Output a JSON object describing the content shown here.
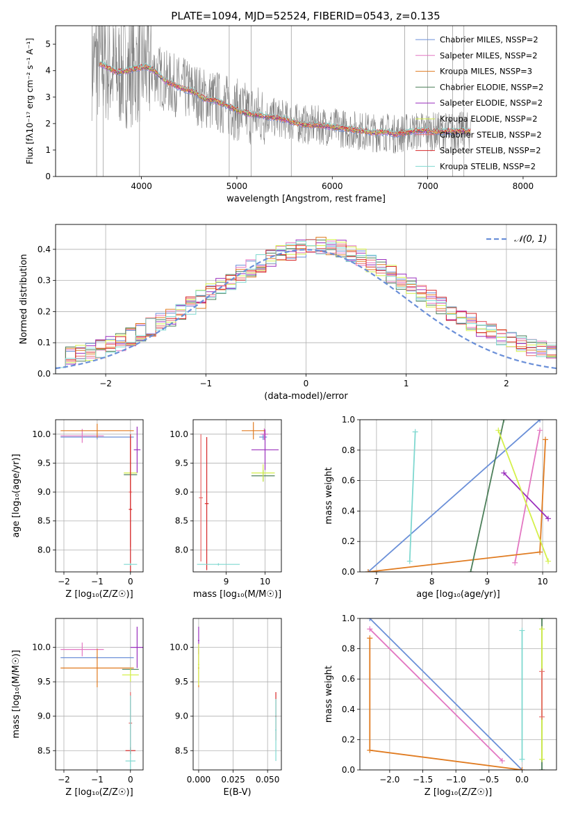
{
  "figure": {
    "title": "PLATE=1094, MJD=52524, FIBERID=0543, z=0.135"
  },
  "colors": {
    "chabrier_miles": "#6a8fd8",
    "salpeter_miles": "#e377c2",
    "kroupa_miles": "#e07b20",
    "chabrier_elodie": "#4d7f5a",
    "salpeter_elodie": "#9a2fbd",
    "kroupa_elodie": "#d4f04a",
    "chabrier_stelib": "#e86a6a",
    "salpeter_stelib": "#d62728",
    "kroupa_stelib": "#7fd8d0",
    "data_spectrum": "#808080",
    "grid": "#b0b0b0",
    "gaussian": "#6a8fd8"
  },
  "chart_data": [
    {
      "id": "spectrum",
      "type": "line",
      "title": "PLATE=1094, MJD=52524, FIBERID=0543, z=0.135",
      "xlabel": "wavelength [Angstrom, rest frame]",
      "ylabel": "Flux [fλ10⁻¹⁷ erg cm⁻² s⁻¹ A⁻¹]",
      "xlim": [
        3100,
        8350
      ],
      "ylim": [
        0,
        5.7
      ],
      "xticks": [
        4000,
        5000,
        6000,
        7000,
        8000
      ],
      "yticks": [
        0,
        1,
        2,
        3,
        4,
        5
      ],
      "legend_position": "top-right",
      "legend": [
        "Chabrier MILES, NSSP=2",
        "Salpeter MILES, NSSP=2",
        "Kroupa MILES, NSSP=3",
        "Chabrier ELODIE, NSSP=2",
        "Salpeter ELODIE, NSSP=2",
        "Kroupa ELODIE, NSSP=2",
        "Chabrier STELIB, NSSP=2",
        "Salpeter STELIB, NSSP=2",
        "Kroupa STELIB, NSSP=2"
      ],
      "model_continuum": {
        "x": [
          3550,
          3650,
          3750,
          3850,
          3950,
          4050,
          4150,
          4250,
          4350,
          4450,
          4550,
          4650,
          4750,
          4850,
          4950,
          5050,
          5150,
          5250,
          5350,
          5450,
          5550,
          5650,
          5750,
          5850,
          5950,
          6050,
          6150,
          6250,
          6350,
          6450,
          6550,
          6650,
          6750,
          6850,
          6950,
          7050,
          7150,
          7250,
          7350,
          7450
        ],
        "y": [
          4.3,
          4.1,
          3.95,
          4.0,
          4.1,
          4.15,
          3.95,
          3.6,
          3.45,
          3.3,
          3.2,
          2.95,
          2.9,
          2.75,
          2.6,
          2.45,
          2.35,
          2.3,
          2.25,
          2.2,
          2.1,
          2.0,
          1.95,
          1.95,
          1.9,
          1.85,
          1.8,
          1.75,
          1.7,
          1.65,
          1.7,
          1.6,
          1.65,
          1.7,
          1.75,
          1.7,
          1.7,
          1.7,
          1.72,
          1.7
        ]
      },
      "data_extent": [
        3480,
        7450
      ]
    },
    {
      "id": "residual_hist",
      "type": "line",
      "xlabel": "(data-model)/error",
      "ylabel": "Normed distribution",
      "xlim": [
        -2.5,
        2.5
      ],
      "ylim": [
        0,
        0.48
      ],
      "xticks": [
        -2,
        -1,
        0,
        1,
        2
      ],
      "xtick_labels": [
        "−2",
        "−1",
        "0",
        "1",
        "2"
      ],
      "yticks": [
        0.0,
        0.1,
        0.2,
        0.3,
        0.4
      ],
      "ytick_labels": [
        "0.0",
        "0.1",
        "0.2",
        "0.3",
        "0.4"
      ],
      "reference_curve": {
        "label": "𝒩(0, 1)",
        "style": "dashed",
        "mean": 0,
        "sigma": 1
      },
      "legend_position": "top-right",
      "bin_width": 0.1,
      "histogram_envelope": [
        0.05,
        0.06,
        0.065,
        0.07,
        0.08,
        0.09,
        0.1,
        0.12,
        0.135,
        0.15,
        0.165,
        0.18,
        0.2,
        0.22,
        0.24,
        0.26,
        0.28,
        0.3,
        0.32,
        0.34,
        0.355,
        0.37,
        0.385,
        0.395,
        0.405,
        0.41,
        0.415,
        0.41,
        0.4,
        0.39,
        0.375,
        0.355,
        0.34,
        0.32,
        0.3,
        0.28,
        0.26,
        0.24,
        0.22,
        0.2,
        0.18,
        0.165,
        0.15,
        0.135,
        0.12,
        0.105,
        0.095,
        0.085,
        0.075,
        0.068
      ]
    },
    {
      "id": "age_vs_Z",
      "type": "scatter",
      "xlabel": "Z [log₁₀(Z/Z☉)]",
      "ylabel": "age  [log₁₀(age/yr)]",
      "xlim": [
        -2.25,
        0.38
      ],
      "ylim": [
        7.62,
        10.25
      ],
      "xticks": [
        -2,
        -1,
        0
      ],
      "xtick_labels": [
        "−2",
        "−1",
        "0"
      ],
      "yticks": [
        8.0,
        8.5,
        9.0,
        9.5,
        10.0
      ],
      "ytick_labels": [
        "8.0",
        "8.5",
        "9.0",
        "9.5",
        "10.0"
      ],
      "points": [
        {
          "s": "chabrier_miles",
          "x": -1.0,
          "y": 9.95,
          "xerr": 1.1,
          "yerr": 0.04
        },
        {
          "s": "salpeter_miles",
          "x": -1.45,
          "y": 9.97,
          "xerr": 0.65,
          "yerr": 0.12
        },
        {
          "s": "kroupa_miles",
          "x": -1.0,
          "y": 10.06,
          "xerr": 1.1,
          "yerr": 0.12
        },
        {
          "s": "chabrier_elodie",
          "x": 0.0,
          "y": 9.3,
          "xerr": 0.2,
          "yerr": 0.05
        },
        {
          "s": "salpeter_elodie",
          "x": 0.2,
          "y": 9.73,
          "xerr": 0.1,
          "yerr": 0.4
        },
        {
          "s": "kroupa_elodie",
          "x": 0.0,
          "y": 9.33,
          "xerr": 0.2,
          "yerr": 0.2
        },
        {
          "s": "chabrier_stelib",
          "x": 0.0,
          "y": 9.0,
          "xerr": 0.05,
          "yerr": 0.95
        },
        {
          "s": "salpeter_stelib",
          "x": 0.0,
          "y": 8.7,
          "xerr": 0.05,
          "yerr": 1.3
        },
        {
          "s": "kroupa_stelib",
          "x": 0.0,
          "y": 7.75,
          "xerr": 0.2,
          "yerr": 0.02
        }
      ]
    },
    {
      "id": "age_vs_mass",
      "type": "scatter",
      "xlabel": "mass [log₁₀(M/M☉)]",
      "xlim": [
        8.15,
        10.42
      ],
      "ylim": [
        7.62,
        10.25
      ],
      "xticks": [
        9,
        10
      ],
      "xtick_labels": [
        "9",
        "10"
      ],
      "yticks": [
        8.0,
        8.5,
        9.0,
        9.5,
        10.0
      ],
      "ytick_labels": [
        "8.0",
        "8.5",
        "9.0",
        "9.5",
        "10.0"
      ],
      "points": [
        {
          "s": "chabrier_miles",
          "x": 9.95,
          "y": 9.95,
          "xerr": 0.1,
          "yerr": 0.05
        },
        {
          "s": "salpeter_miles",
          "x": 9.98,
          "y": 10.0,
          "xerr": 0.1,
          "yerr": 0.1
        },
        {
          "s": "kroupa_miles",
          "x": 9.7,
          "y": 10.06,
          "xerr": 0.3,
          "yerr": 0.15
        },
        {
          "s": "chabrier_elodie",
          "x": 9.95,
          "y": 9.28,
          "xerr": 0.3,
          "yerr": 0.1
        },
        {
          "s": "salpeter_elodie",
          "x": 10.0,
          "y": 9.73,
          "xerr": 0.35,
          "yerr": 0.35
        },
        {
          "s": "kroupa_elodie",
          "x": 9.95,
          "y": 9.33,
          "xerr": 0.3,
          "yerr": 0.15
        },
        {
          "s": "chabrier_stelib",
          "x": 8.35,
          "y": 8.9,
          "xerr": 0.05,
          "yerr": 1.1
        },
        {
          "s": "salpeter_stelib",
          "x": 8.5,
          "y": 8.8,
          "xerr": 0.05,
          "yerr": 1.15
        },
        {
          "s": "kroupa_stelib",
          "x": 8.8,
          "y": 7.75,
          "xerr": 0.55,
          "yerr": 0.02
        }
      ]
    },
    {
      "id": "weight_vs_age",
      "type": "line",
      "xlabel": "age  [log₁₀(age/yr)]",
      "ylabel": "mass weight",
      "xlim": [
        6.7,
        10.25
      ],
      "ylim": [
        0,
        1
      ],
      "xticks": [
        7,
        8,
        9,
        10
      ],
      "yticks": [
        0.0,
        0.2,
        0.4,
        0.6,
        0.8,
        1.0
      ],
      "ytick_labels": [
        "0.0",
        "0.2",
        "0.4",
        "0.6",
        "0.8",
        "1.0"
      ],
      "series": [
        {
          "s": "chabrier_miles",
          "x": [
            6.85,
            9.95
          ],
          "y": [
            0.0,
            1.0
          ]
        },
        {
          "s": "salpeter_miles",
          "x": [
            9.5,
            9.95
          ],
          "y": [
            0.06,
            0.93
          ]
        },
        {
          "s": "kroupa_miles",
          "x": [
            6.85,
            9.95,
            10.05
          ],
          "y": [
            0.0,
            0.13,
            0.87
          ]
        },
        {
          "s": "chabrier_elodie",
          "x": [
            8.7,
            9.3
          ],
          "y": [
            0.0,
            1.0
          ]
        },
        {
          "s": "salpeter_elodie",
          "x": [
            9.3,
            10.1
          ],
          "y": [
            0.65,
            0.35
          ]
        },
        {
          "s": "kroupa_elodie",
          "x": [
            9.2,
            10.1
          ],
          "y": [
            0.93,
            0.07
          ]
        },
        {
          "s": "kroupa_stelib",
          "x": [
            7.6,
            7.7
          ],
          "y": [
            0.07,
            0.92
          ]
        }
      ]
    },
    {
      "id": "mass_vs_Z",
      "type": "scatter",
      "xlabel": "Z [log₁₀(Z/Z☉)]",
      "ylabel": "mass [log₁₀(M/M☉)]",
      "xlim": [
        -2.25,
        0.38
      ],
      "ylim": [
        8.22,
        10.42
      ],
      "xticks": [
        -2,
        -1,
        0
      ],
      "xtick_labels": [
        "−2",
        "−1",
        "0"
      ],
      "yticks": [
        8.5,
        9.0,
        9.5,
        10.0
      ],
      "ytick_labels": [
        "8.5",
        "9.0",
        "9.5",
        "10.0"
      ],
      "points": [
        {
          "s": "chabrier_miles",
          "x": -1.0,
          "y": 9.85,
          "xerr": 1.1,
          "yerr": 0.02
        },
        {
          "s": "salpeter_miles",
          "x": -1.45,
          "y": 9.97,
          "xerr": 0.65,
          "yerr": 0.1
        },
        {
          "s": "kroupa_miles",
          "x": -1.0,
          "y": 9.7,
          "xerr": 1.1,
          "yerr": 0.28
        },
        {
          "s": "chabrier_elodie",
          "x": 0.0,
          "y": 9.68,
          "xerr": 0.25,
          "yerr": 0.02
        },
        {
          "s": "salpeter_elodie",
          "x": 0.2,
          "y": 10.0,
          "xerr": 0.2,
          "yerr": 0.3
        },
        {
          "s": "kroupa_elodie",
          "x": 0.0,
          "y": 9.6,
          "xerr": 0.25,
          "yerr": 0.1
        },
        {
          "s": "chabrier_stelib",
          "x": 0.0,
          "y": 8.9,
          "xerr": 0.05,
          "yerr": 0.45
        },
        {
          "s": "salpeter_stelib",
          "x": 0.0,
          "y": 8.5,
          "xerr": 0.15,
          "yerr": 0.05
        },
        {
          "s": "kroupa_stelib",
          "x": 0.0,
          "y": 8.35,
          "xerr": 0.15,
          "yerr": 0.95
        }
      ]
    },
    {
      "id": "mass_vs_ebv",
      "type": "scatter",
      "xlabel": "E(B-V)",
      "xlim": [
        -0.004,
        0.06
      ],
      "ylim": [
        8.22,
        10.42
      ],
      "xticks": [
        0.0,
        0.025,
        0.05
      ],
      "xtick_labels": [
        "0.000",
        "0.025",
        "0.050"
      ],
      "yticks": [
        8.5,
        9.0,
        9.5,
        10.0
      ],
      "ytick_labels": [
        "8.5",
        "9.0",
        "9.5",
        "10.0"
      ],
      "points": [
        {
          "s": "kroupa_miles",
          "x": 0.0,
          "y": 9.7,
          "xerr": 0.0005,
          "yerr": 0.28
        },
        {
          "s": "salpeter_elodie",
          "x": 0.0,
          "y": 10.1,
          "xerr": 0.0005,
          "yerr": 0.2
        },
        {
          "s": "kroupa_elodie",
          "x": 0.0,
          "y": 9.75,
          "xerr": 0.0005,
          "yerr": 0.3
        },
        {
          "s": "salpeter_stelib",
          "x": 0.056,
          "y": 9.0,
          "xerr": 0.0005,
          "yerr": 0.35
        },
        {
          "s": "kroupa_stelib",
          "x": 0.056,
          "y": 8.8,
          "xerr": 0.0005,
          "yerr": 0.45
        }
      ]
    },
    {
      "id": "weight_vs_Z",
      "type": "line",
      "xlabel": "Z [log₁₀(Z/Z☉)]",
      "ylabel": "mass weight",
      "xlim": [
        -2.45,
        0.52
      ],
      "ylim": [
        0,
        1
      ],
      "xticks": [
        -2.0,
        -1.5,
        -1.0,
        -0.5,
        0.0
      ],
      "xtick_labels": [
        "−2.0",
        "−1.5",
        "−1.0",
        "−0.5",
        "0.0"
      ],
      "yticks": [
        0.0,
        0.2,
        0.4,
        0.6,
        0.8,
        1.0
      ],
      "ytick_labels": [
        "0.0",
        "0.2",
        "0.4",
        "0.6",
        "0.8",
        "1.0"
      ],
      "series": [
        {
          "s": "chabrier_miles",
          "x": [
            -2.3,
            0.0
          ],
          "y": [
            1.0,
            0.0
          ]
        },
        {
          "s": "salpeter_miles",
          "x": [
            -2.3,
            -0.3
          ],
          "y": [
            0.93,
            0.06
          ]
        },
        {
          "s": "kroupa_miles",
          "x": [
            -2.3,
            -2.3,
            0.0
          ],
          "y": [
            0.87,
            0.13,
            0.0
          ]
        },
        {
          "s": "chabrier_elodie",
          "x": [
            0.3,
            0.3
          ],
          "y": [
            0.0,
            1.0
          ]
        },
        {
          "s": "kroupa_elodie",
          "x": [
            0.3,
            0.3
          ],
          "y": [
            0.07,
            0.93
          ]
        },
        {
          "s": "kroupa_stelib",
          "x": [
            0.0,
            0.0
          ],
          "y": [
            0.07,
            0.92
          ]
        },
        {
          "s": "chabrier_stelib",
          "x": [
            0.3,
            0.3
          ],
          "y": [
            0.35,
            0.65
          ]
        }
      ]
    }
  ]
}
